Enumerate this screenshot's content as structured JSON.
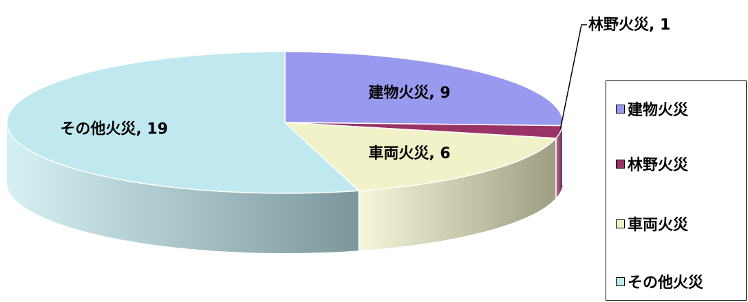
{
  "chart_data": {
    "type": "pie",
    "categories": [
      "建物火災",
      "林野火災",
      "車両火災",
      "その他火災"
    ],
    "values": [
      9,
      1,
      6,
      19
    ],
    "colors": [
      "#9999f0",
      "#993366",
      "#f2f2c8",
      "#bfe9ee"
    ],
    "data_labels": [
      "建物火災, 9",
      "林野火災, 1",
      "車両火災, 6",
      "その他火災, 19"
    ],
    "style": "3d-tilted",
    "legend_position": "right"
  },
  "legend": {
    "items": [
      {
        "label": "建物火災",
        "color": "#9999f0"
      },
      {
        "label": "林野火災",
        "color": "#993366"
      },
      {
        "label": "車両火災",
        "color": "#f2f2c8"
      },
      {
        "label": "その他火災",
        "color": "#bfe9ee"
      }
    ]
  }
}
